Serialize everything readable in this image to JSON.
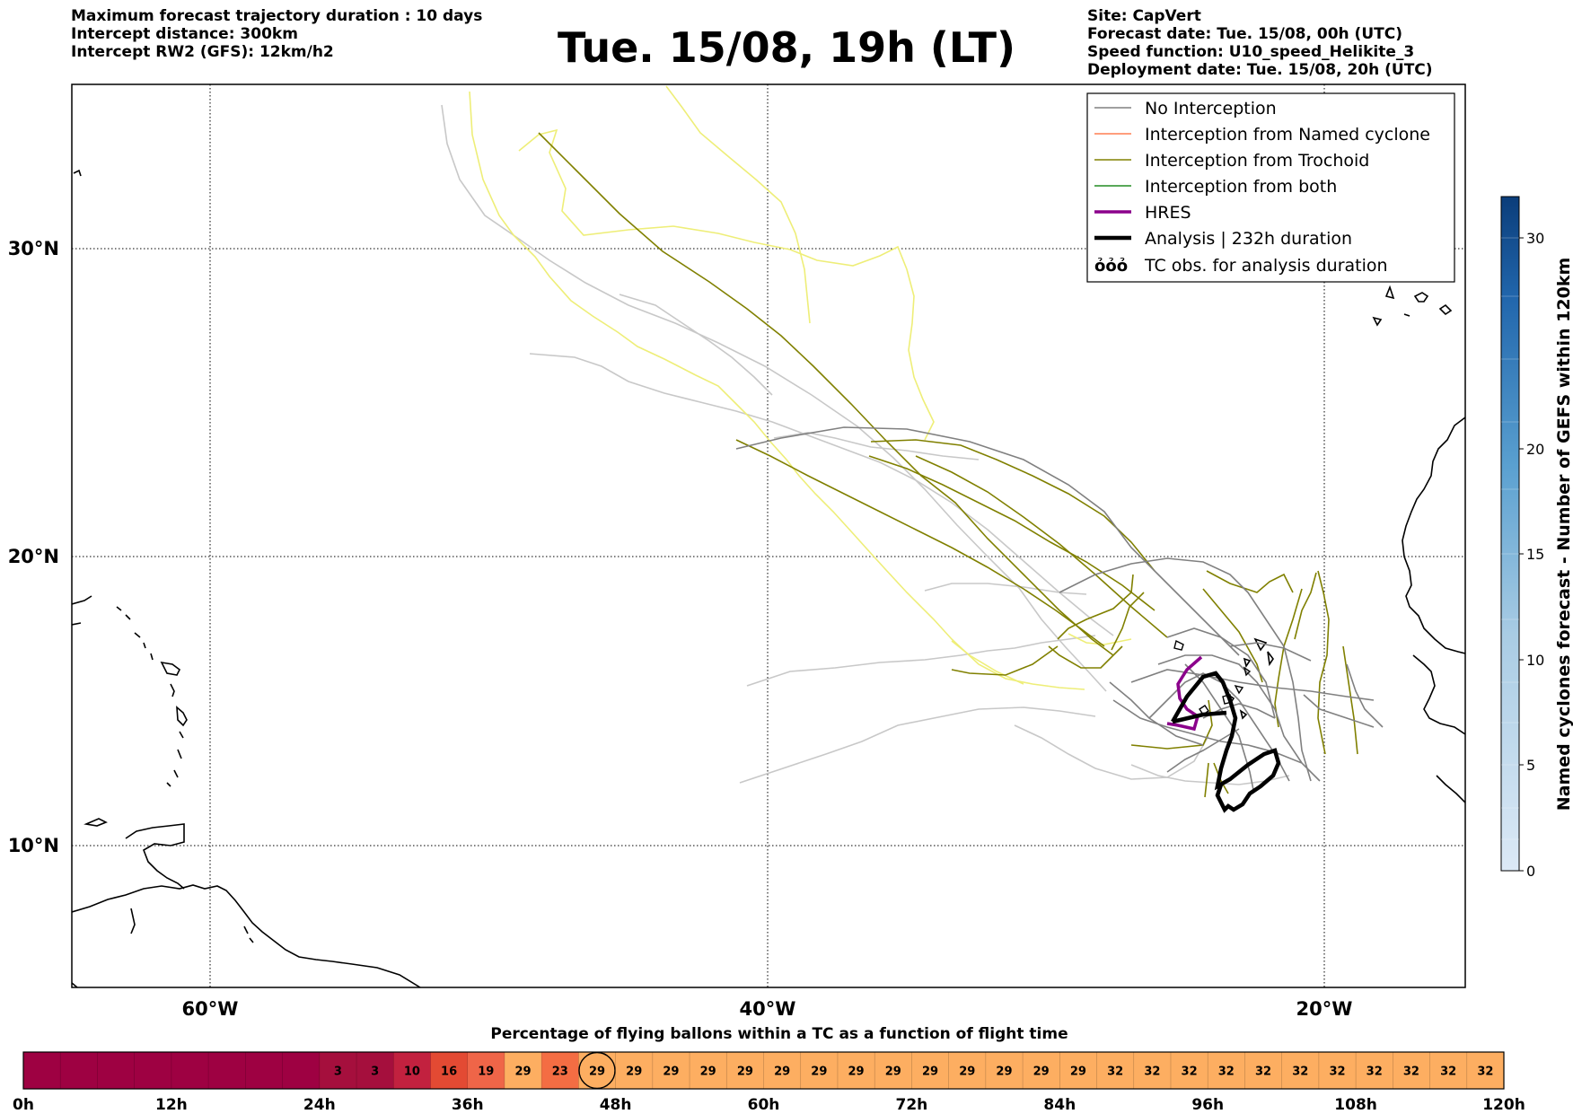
{
  "header": {
    "left_lines": [
      "Maximum forecast trajectory duration : 10 days",
      "Intercept distance: 300km",
      "Intercept RW2 (GFS):  12km/h2"
    ],
    "title": "Tue. 15/08, 19h (LT)",
    "right_lines": [
      "Site: CapVert",
      "Forecast date: Tue. 15/08, 00h (UTC)",
      "Speed function: U10_speed_Helikite_3",
      "Deployment date: Tue. 15/08, 20h (UTC)"
    ]
  },
  "map": {
    "lat_labels": [
      "30°N",
      "20°N",
      "10°N"
    ],
    "lon_labels": [
      "60°W",
      "40°W",
      "20°W"
    ],
    "legend": [
      {
        "label": "No Interception",
        "color": "#808080"
      },
      {
        "label": "Interception from Named cyclone",
        "color": "#ff7f50"
      },
      {
        "label": "Interception from Trochoid",
        "color": "#808000"
      },
      {
        "label": "Interception from both",
        "color": "#228b22"
      },
      {
        "label": "HRES",
        "color": "#8b008b"
      },
      {
        "label": "Analysis | 232h duration",
        "color": "#000000"
      },
      {
        "label": "TC obs. for analysis duration",
        "color": "#000000"
      }
    ],
    "tc_symbol": "ỏỏỏ"
  },
  "colorbar": {
    "label": "Named cyclones forecast - Number of GEFS within 120km",
    "ticks": [
      "0",
      "5",
      "10",
      "15",
      "20",
      "30"
    ]
  },
  "timeline": {
    "title": "Percentage of flying ballons within a TC as a function of flight time",
    "tick_labels": [
      "0h",
      "12h",
      "24h",
      "36h",
      "48h",
      "60h",
      "72h",
      "84h",
      "96h",
      "108h",
      "120h"
    ],
    "cells": [
      "",
      "",
      "",
      "",
      "",
      "",
      "",
      "",
      "3",
      "3",
      "10",
      "16",
      "19",
      "29",
      "23",
      "29",
      "29",
      "29",
      "29",
      "29",
      "29",
      "29",
      "29",
      "29",
      "29",
      "29",
      "29",
      "29",
      "29",
      "32",
      "32",
      "32",
      "32",
      "32",
      "32",
      "32",
      "32",
      "32",
      "32",
      "32"
    ],
    "marker_index": 15
  }
}
